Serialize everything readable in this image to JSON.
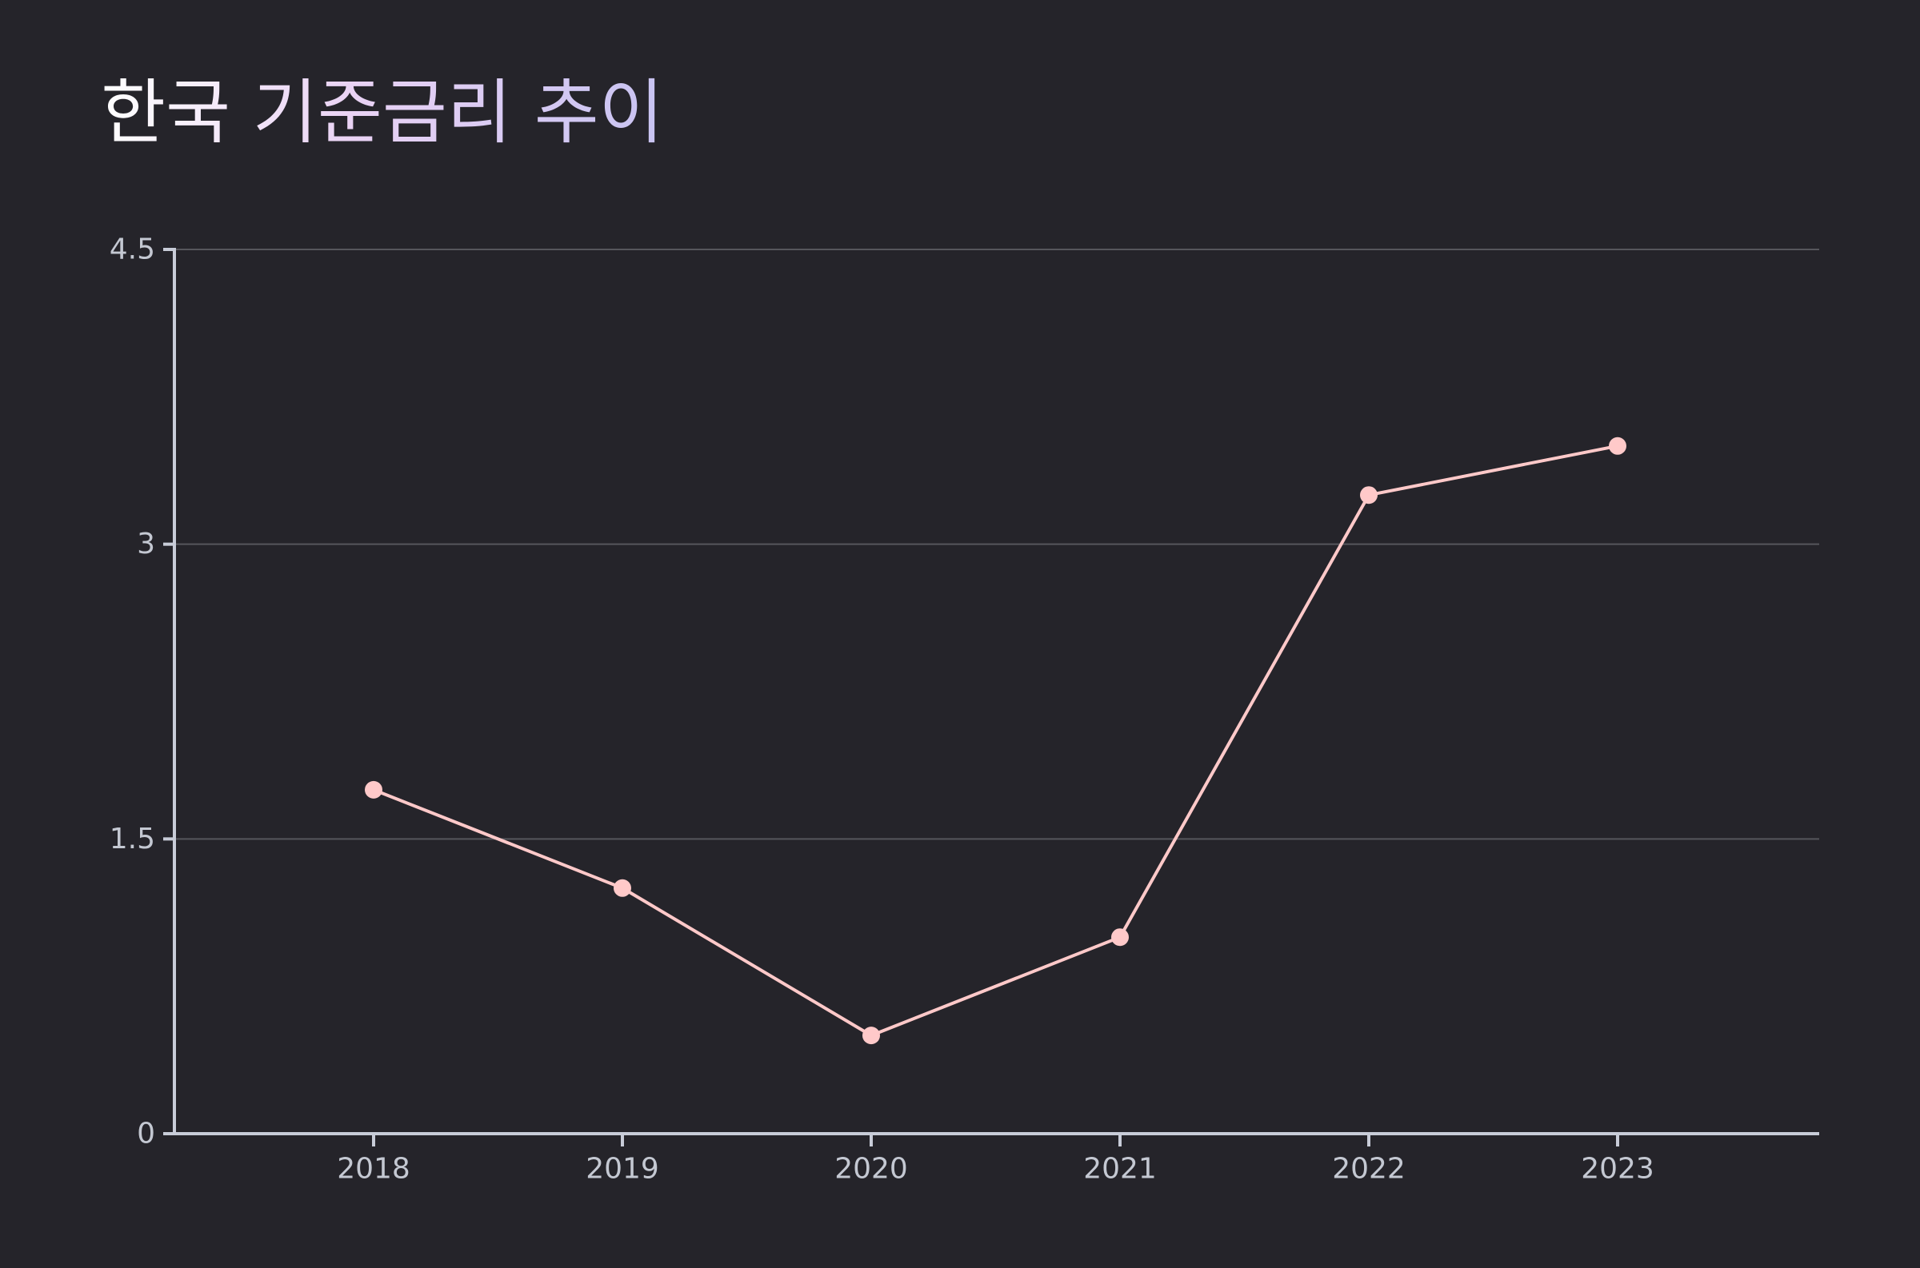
{
  "chart_data": {
    "type": "line",
    "title": "한국 기준금리 추이",
    "xlabel": "",
    "ylabel": "",
    "categories": [
      "2018",
      "2019",
      "2020",
      "2021",
      "2022",
      "2023"
    ],
    "series": [
      {
        "values": [
          1.75,
          1.25,
          0.5,
          1.0,
          3.25,
          3.5
        ]
      }
    ],
    "ylim": [
      0,
      4.5
    ],
    "yticks": [
      0,
      1.5,
      3,
      4.5
    ],
    "ytick_labels": [
      "0",
      "1.5",
      "3",
      "4.5"
    ],
    "grid": true,
    "legend": "none"
  },
  "colors": {
    "background": "#25242a",
    "line": "#ffc9c9",
    "axis": "#c8ccd8",
    "grid": "#56565c",
    "tick_text": "#c4c8d2"
  }
}
